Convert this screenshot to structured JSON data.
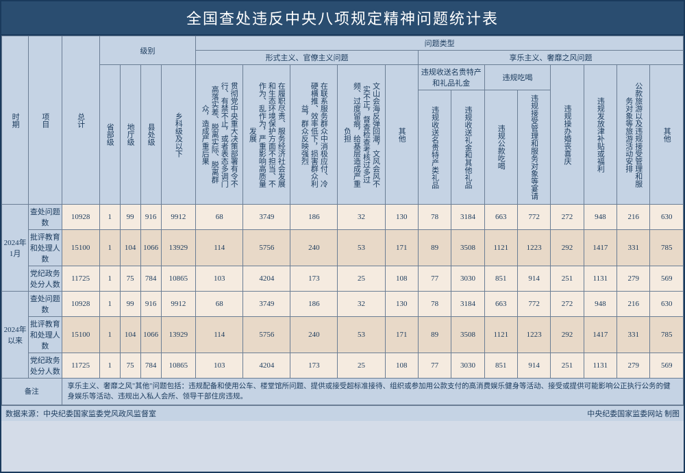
{
  "title": "全国查处违反中央八项规定精神问题统计表",
  "header": {
    "time": "时期",
    "item": "项目",
    "total": "总计",
    "level": "级别",
    "levels": [
      "省部级",
      "地厅级",
      "县处级",
      "乡科级及以下"
    ],
    "problemType": "问题类型",
    "formalism": "形式主义、官僚主义问题",
    "hedonism": "享乐主义、奢靡之风问题",
    "formCols": [
      "贯彻党中央重大决策部署有令不行、有禁不止，或者表态多调门高落实差、脱离实际、脱离群众，造成严重后果",
      "在履职尽责、服务经济社会发展和生态环境保护方面不担当、不作为、乱作为，严重影响高质量发展",
      "在联系服务群众中消极应付、冷硬横推、效率低下，损害群众利益，群众反映强烈",
      "文山会海反弹回潮，文风会风不实不正，督查检查考核过多过频、过度留痕，给基层造成严重负担",
      "其他"
    ],
    "hedGroup1": "违规收送名贵特产和礼品礼金",
    "hedSub1": [
      "违规收送名贵特产类礼品",
      "违规收送礼金和其他礼品"
    ],
    "hedGroup2": "违规吃喝",
    "hedSub2": [
      "违规公款吃喝",
      "违规接受管理和服务对象等宴请"
    ],
    "hedFlat": [
      "违规操办婚丧喜庆",
      "违规发放津补贴或福利",
      "公款旅游以及违规接受管理和服务对象等旅游活动安排",
      "其他"
    ]
  },
  "periods": [
    {
      "label": "2024年1月",
      "rows": [
        {
          "name": "查处问题数",
          "vals": [
            10928,
            1,
            99,
            916,
            9912,
            68,
            3749,
            186,
            32,
            130,
            78,
            3184,
            663,
            772,
            272,
            948,
            216,
            630
          ]
        },
        {
          "name": "批评教育和处理人数",
          "vals": [
            15100,
            1,
            104,
            1066,
            13929,
            114,
            5756,
            240,
            53,
            171,
            89,
            3508,
            1121,
            1223,
            292,
            1417,
            331,
            785
          ]
        },
        {
          "name": "党纪政务处分人数",
          "vals": [
            11725,
            1,
            75,
            784,
            10865,
            103,
            4204,
            173,
            25,
            108,
            77,
            3030,
            851,
            914,
            251,
            1131,
            279,
            569
          ]
        }
      ]
    },
    {
      "label": "2024年以来",
      "rows": [
        {
          "name": "查处问题数",
          "vals": [
            10928,
            1,
            99,
            916,
            9912,
            68,
            3749,
            186,
            32,
            130,
            78,
            3184,
            663,
            772,
            272,
            948,
            216,
            630
          ]
        },
        {
          "name": "批评教育和处理人数",
          "vals": [
            15100,
            1,
            104,
            1066,
            13929,
            114,
            5756,
            240,
            53,
            171,
            89,
            3508,
            1121,
            1223,
            292,
            1417,
            331,
            785
          ]
        },
        {
          "name": "党纪政务处分人数",
          "vals": [
            11725,
            1,
            75,
            784,
            10865,
            103,
            4204,
            173,
            25,
            108,
            77,
            3030,
            851,
            914,
            251,
            1131,
            279,
            569
          ]
        }
      ]
    }
  ],
  "noteLabel": "备注",
  "note": "享乐主义、奢靡之风\"其他\"问题包括：违规配备和使用公车、楼堂馆所问题、提供或接受超标准接待、组织或参加用公款支付的高消费娱乐健身等活动、接受或提供可能影响公正执行公务的健身娱乐等活动、违规出入私人会所、领导干部住房违规。",
  "sourceLabel": "数据来源：",
  "source": "中央纪委国家监委党风政风监督室",
  "credit": "中央纪委国家监委网站 制图"
}
